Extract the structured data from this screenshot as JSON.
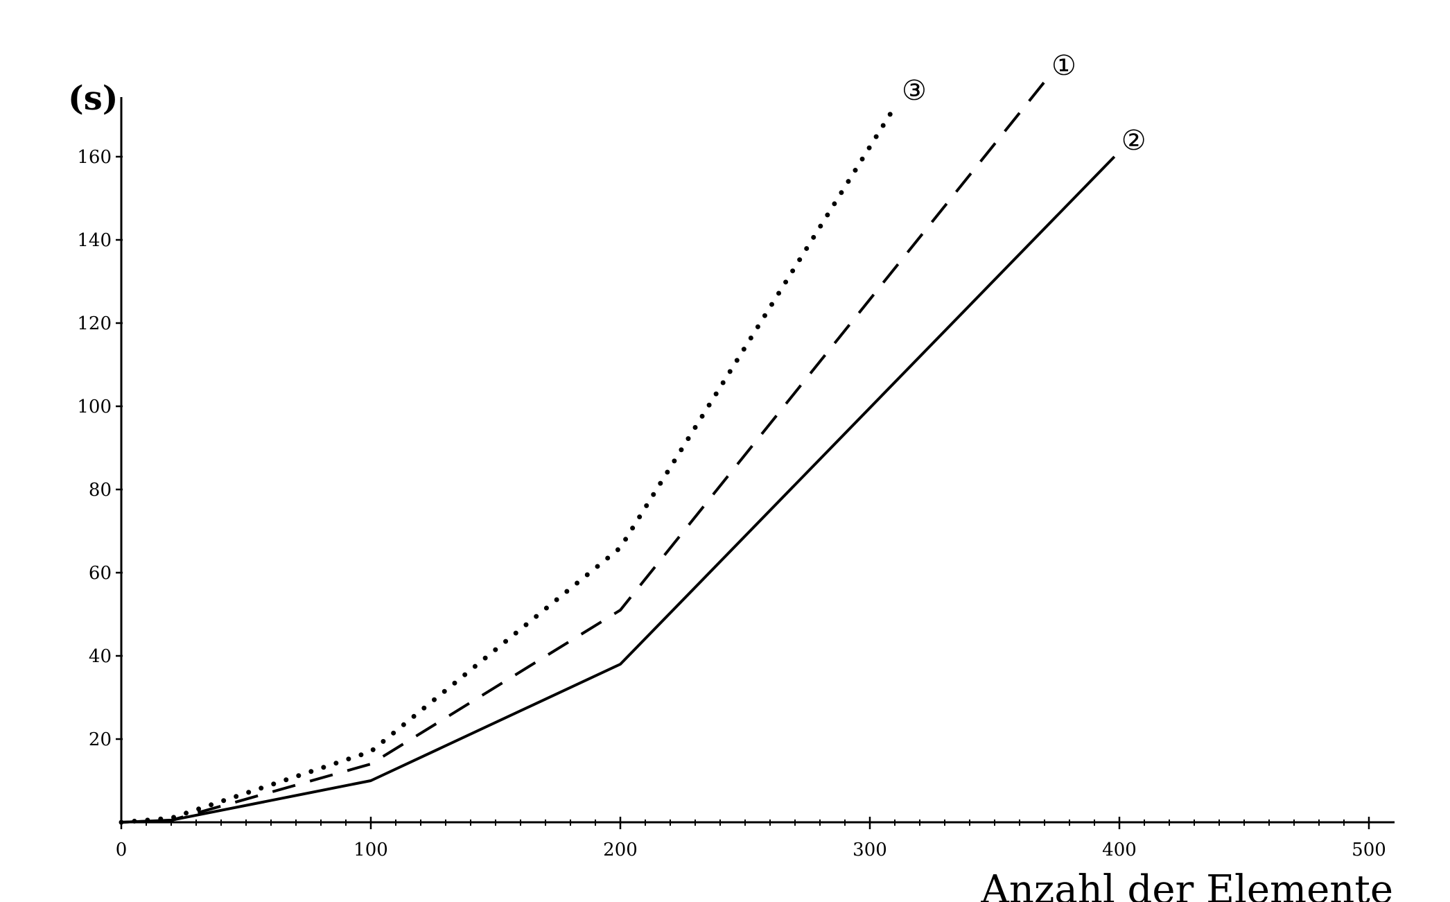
{
  "chart_data": {
    "type": "line",
    "title": "",
    "xlabel": "Anzahl der Elemente",
    "ylabel": "(s)",
    "xlim": [
      0,
      510
    ],
    "ylim": [
      0,
      175
    ],
    "x_ticks": [
      0,
      100,
      200,
      300,
      400,
      500
    ],
    "x_tick_labels": [
      "0",
      "100",
      "200",
      "300",
      "400",
      "500"
    ],
    "y_ticks": [
      20,
      40,
      60,
      80,
      100,
      120,
      140,
      160
    ],
    "y_tick_labels": [
      "20",
      "40",
      "60",
      "80",
      "100",
      "120",
      "140",
      "160"
    ],
    "grid": false,
    "series": [
      {
        "name": "①",
        "style": "dashed",
        "points": [
          [
            0,
            0
          ],
          [
            20,
            0.5
          ],
          [
            100,
            14
          ],
          [
            200,
            51
          ],
          [
            370,
            178
          ]
        ]
      },
      {
        "name": "②",
        "style": "solid",
        "points": [
          [
            0,
            0
          ],
          [
            20,
            0.5
          ],
          [
            100,
            10
          ],
          [
            200,
            38
          ],
          [
            398,
            160
          ]
        ]
      },
      {
        "name": "③",
        "style": "dotted",
        "points": [
          [
            0,
            0
          ],
          [
            20,
            1
          ],
          [
            100,
            17
          ],
          [
            200,
            66
          ],
          [
            310,
            172
          ]
        ]
      }
    ]
  }
}
